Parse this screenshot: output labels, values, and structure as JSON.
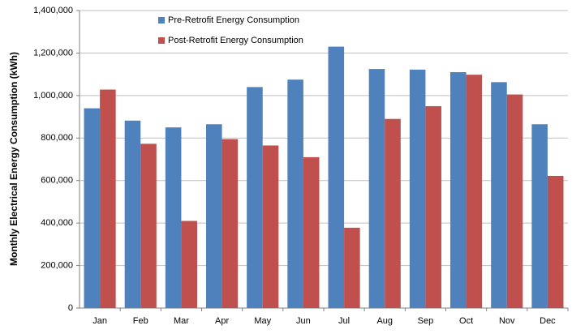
{
  "chart_data": {
    "type": "bar",
    "ylabel": "Monthly Electrical Energy Consumption (kWh)",
    "categories": [
      "Jan",
      "Feb",
      "Mar",
      "Apr",
      "May",
      "Jun",
      "Jul",
      "Aug",
      "Sep",
      "Oct",
      "Nov",
      "Dec"
    ],
    "series": [
      {
        "name": "Pre-Retrofit Energy Consumption",
        "color": "#4f81bd",
        "values": [
          940000,
          882000,
          850000,
          865000,
          1040000,
          1075000,
          1230000,
          1125000,
          1122000,
          1110000,
          1063000,
          865000
        ]
      },
      {
        "name": "Post-Retrofit Energy Consumption",
        "color": "#c0504d",
        "values": [
          1028000,
          773000,
          410000,
          795000,
          765000,
          710000,
          378000,
          890000,
          950000,
          1098000,
          1005000,
          622000
        ]
      }
    ],
    "ylim": [
      0,
      1400000
    ],
    "yticks": [
      0,
      {
        "value": 200000,
        "label": "200,000"
      },
      {
        "value": 400000,
        "label": "400,000"
      },
      {
        "value": 600000,
        "label": "600,000"
      },
      {
        "value": 800000,
        "label": "800,000"
      },
      {
        "value": 1000000,
        "label": "1,000,000"
      },
      {
        "value": 1200000,
        "label": "1,200,000"
      },
      {
        "value": 1400000,
        "label": "1,400,000"
      }
    ],
    "grid": true,
    "legend": "top-left"
  }
}
